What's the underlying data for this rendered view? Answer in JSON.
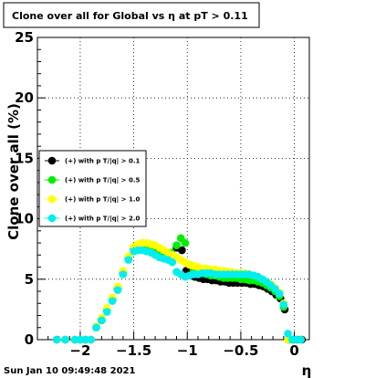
{
  "chart_data": {
    "type": "scatter",
    "title": "Clone  over all for Global vs   η at pT > 0.11",
    "xlabel": "η",
    "ylabel": "Clone  over all (%)",
    "xlim": [
      -2.4,
      0.14
    ],
    "ylim": [
      0,
      25
    ],
    "x_ticks": [
      -2,
      -1.5,
      -1,
      -0.5,
      0
    ],
    "x_tick_labels": [
      "−2",
      "−1.5",
      "−1",
      "−0.5",
      "0"
    ],
    "y_ticks": [
      0,
      5,
      10,
      15,
      20,
      25
    ],
    "y_tick_labels": [
      "0",
      "5",
      "10",
      "15",
      "20",
      "25"
    ],
    "grid": true,
    "legend_position": "left-middle",
    "series": [
      {
        "name": "(+) with p T/|q| > 0.1",
        "color": "#000000",
        "x": [
          -2.22,
          -2.14,
          -2.05,
          -2.0,
          -1.95,
          -1.9,
          -1.85,
          -1.8,
          -1.75,
          -1.7,
          -1.65,
          -1.6,
          -1.55,
          -1.5,
          -1.45,
          -1.4,
          -1.35,
          -1.3,
          -1.25,
          -1.2,
          -1.15,
          -1.1,
          -1.05,
          -1.01,
          -0.97,
          -0.93,
          -0.89,
          -0.85,
          -0.81,
          -0.77,
          -0.73,
          -0.69,
          -0.65,
          -0.61,
          -0.57,
          -0.53,
          -0.49,
          -0.45,
          -0.41,
          -0.37,
          -0.33,
          -0.29,
          -0.25,
          -0.21,
          -0.17,
          -0.13,
          -0.09,
          -0.05,
          -0.01,
          0.03,
          0.07
        ],
        "y": [
          0,
          0,
          0,
          0,
          0,
          0,
          1,
          1.6,
          2.4,
          3.3,
          4.2,
          5.5,
          6.7,
          7.5,
          7.7,
          7.6,
          7.6,
          7.5,
          7.3,
          7.0,
          6.9,
          7.6,
          7.4,
          5.7,
          5.3,
          5.2,
          5.1,
          5.0,
          5.0,
          4.9,
          4.9,
          4.8,
          4.8,
          4.7,
          4.7,
          4.7,
          4.7,
          4.7,
          4.6,
          4.6,
          4.5,
          4.4,
          4.2,
          4.0,
          3.7,
          3.4,
          2.5,
          0,
          0,
          0,
          0
        ]
      },
      {
        "name": "(+) with p T/|q| > 0.5",
        "color": "#00ee00",
        "x": [
          -2.22,
          -2.14,
          -2.05,
          -2.0,
          -1.95,
          -1.9,
          -1.85,
          -1.8,
          -1.75,
          -1.7,
          -1.65,
          -1.6,
          -1.55,
          -1.5,
          -1.45,
          -1.4,
          -1.35,
          -1.3,
          -1.25,
          -1.2,
          -1.15,
          -1.1,
          -1.06,
          -1.02,
          -0.98,
          -0.94,
          -0.9,
          -0.86,
          -0.82,
          -0.78,
          -0.74,
          -0.7,
          -0.66,
          -0.62,
          -0.58,
          -0.54,
          -0.5,
          -0.46,
          -0.42,
          -0.38,
          -0.34,
          -0.3,
          -0.26,
          -0.22,
          -0.18,
          -0.14,
          -0.1,
          -0.06,
          -0.02,
          0.02,
          0.06
        ],
        "y": [
          0,
          0,
          0,
          0,
          0,
          0,
          1,
          1.7,
          2.5,
          3.4,
          4.3,
          5.6,
          6.8,
          7.6,
          7.8,
          7.7,
          7.7,
          7.6,
          7.4,
          7.2,
          7.2,
          7.8,
          8.4,
          8.0,
          6.2,
          5.7,
          5.6,
          5.5,
          5.4,
          5.3,
          5.3,
          5.2,
          5.1,
          5.1,
          5.1,
          5.1,
          5.0,
          5.0,
          4.9,
          4.9,
          4.8,
          4.7,
          4.5,
          4.3,
          4.0,
          3.6,
          2.7,
          0,
          0,
          0,
          0
        ]
      },
      {
        "name": "(+) with p T/|q| > 1.0",
        "color": "#ffff00",
        "x": [
          -2.22,
          -2.14,
          -2.05,
          -2.0,
          -1.95,
          -1.9,
          -1.85,
          -1.8,
          -1.75,
          -1.7,
          -1.65,
          -1.6,
          -1.55,
          -1.5,
          -1.46,
          -1.42,
          -1.38,
          -1.34,
          -1.3,
          -1.26,
          -1.22,
          -1.18,
          -1.14,
          -1.1,
          -1.06,
          -1.02,
          -0.98,
          -0.94,
          -0.9,
          -0.86,
          -0.82,
          -0.78,
          -0.74,
          -0.7,
          -0.66,
          -0.62,
          -0.58,
          -0.54,
          -0.5,
          -0.46,
          -0.42,
          -0.38,
          -0.34,
          -0.3,
          -0.26,
          -0.22,
          -0.18,
          -0.14,
          -0.1,
          -0.06,
          -0.02,
          0.02,
          0.06
        ],
        "y": [
          0,
          0,
          0,
          0,
          0,
          0,
          1.1,
          1.8,
          2.6,
          3.5,
          4.4,
          5.7,
          6.9,
          7.7,
          7.9,
          8.0,
          8.0,
          7.9,
          7.8,
          7.6,
          7.4,
          7.2,
          7.0,
          6.8,
          6.6,
          6.4,
          6.2,
          6.1,
          6.0,
          5.9,
          5.9,
          5.8,
          5.8,
          5.7,
          5.7,
          5.6,
          5.6,
          5.5,
          5.5,
          5.5,
          5.4,
          5.3,
          5.2,
          5.0,
          4.8,
          4.6,
          4.3,
          3.9,
          3.0,
          0,
          0,
          0,
          0
        ]
      },
      {
        "name": "(+) with p T/|q| > 2.0",
        "color": "#00eeee",
        "x": [
          -2.22,
          -2.14,
          -2.05,
          -2.0,
          -1.95,
          -1.9,
          -1.85,
          -1.8,
          -1.75,
          -1.7,
          -1.65,
          -1.6,
          -1.55,
          -1.5,
          -1.46,
          -1.42,
          -1.38,
          -1.34,
          -1.3,
          -1.26,
          -1.22,
          -1.18,
          -1.14,
          -1.1,
          -1.06,
          -1.02,
          -0.98,
          -0.94,
          -0.9,
          -0.86,
          -0.82,
          -0.78,
          -0.74,
          -0.7,
          -0.66,
          -0.62,
          -0.58,
          -0.54,
          -0.5,
          -0.46,
          -0.42,
          -0.38,
          -0.34,
          -0.3,
          -0.26,
          -0.22,
          -0.18,
          -0.14,
          -0.1,
          -0.06,
          -0.02,
          0.02,
          0.06
        ],
        "y": [
          0,
          0,
          0,
          0,
          0,
          0,
          1.0,
          1.6,
          2.3,
          3.2,
          4.1,
          5.4,
          6.6,
          7.3,
          7.4,
          7.4,
          7.3,
          7.2,
          7.0,
          6.8,
          6.7,
          6.6,
          6.4,
          5.6,
          5.4,
          5.2,
          5.3,
          5.4,
          5.4,
          5.5,
          5.5,
          5.5,
          5.4,
          5.4,
          5.4,
          5.4,
          5.4,
          5.4,
          5.4,
          5.4,
          5.4,
          5.3,
          5.2,
          5.0,
          4.8,
          4.5,
          4.2,
          3.8,
          2.9,
          0.5,
          0,
          0,
          0
        ]
      }
    ]
  },
  "footer": {
    "timestamp": "Sun Jan 10 09:49:48 2021"
  }
}
